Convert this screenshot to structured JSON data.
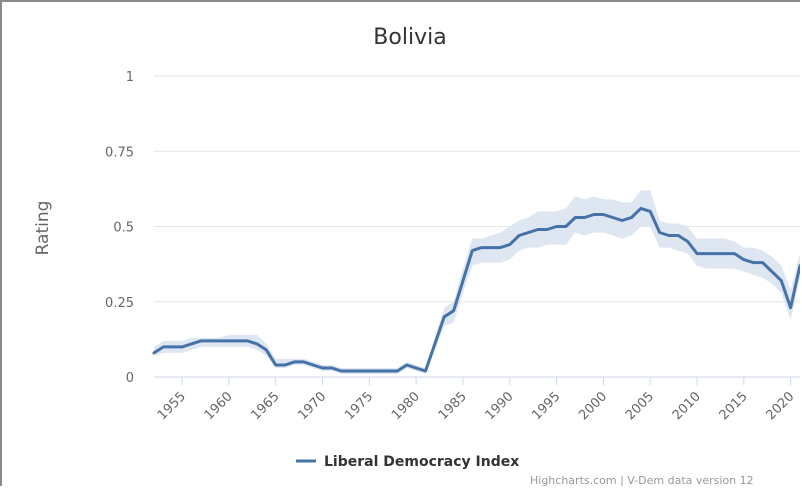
{
  "chart_data": {
    "type": "line",
    "title": "Bolivia",
    "ylabel": "Rating",
    "xlabel": "",
    "ylim": [
      0,
      1
    ],
    "xlim": [
      1952,
      2021
    ],
    "y_ticks": [
      {
        "value": 0,
        "label": "0"
      },
      {
        "value": 0.25,
        "label": "0.25"
      },
      {
        "value": 0.5,
        "label": "0.5"
      },
      {
        "value": 0.75,
        "label": "0.75"
      },
      {
        "value": 1,
        "label": "1"
      }
    ],
    "x_ticks": [
      {
        "value": 1955,
        "label": "1955"
      },
      {
        "value": 1960,
        "label": "1960"
      },
      {
        "value": 1965,
        "label": "1965"
      },
      {
        "value": 1970,
        "label": "1970"
      },
      {
        "value": 1975,
        "label": "1975"
      },
      {
        "value": 1980,
        "label": "1980"
      },
      {
        "value": 1985,
        "label": "1985"
      },
      {
        "value": 1990,
        "label": "1990"
      },
      {
        "value": 1995,
        "label": "1995"
      },
      {
        "value": 2000,
        "label": "2000"
      },
      {
        "value": 2005,
        "label": "2005"
      },
      {
        "value": 2010,
        "label": "2010"
      },
      {
        "value": 2015,
        "label": "2015"
      },
      {
        "value": 2020,
        "label": "2020"
      }
    ],
    "grid": true,
    "legend_position": "bottom-center",
    "credits": "Highcharts.com | V-Dem data version 12",
    "series": [
      {
        "name": "Liberal Democracy Index",
        "color": "#4572a7",
        "band_color": "#dde6f1",
        "x": [
          1952,
          1953,
          1954,
          1955,
          1956,
          1957,
          1958,
          1959,
          1960,
          1961,
          1962,
          1963,
          1964,
          1965,
          1966,
          1967,
          1968,
          1969,
          1970,
          1971,
          1972,
          1973,
          1974,
          1975,
          1976,
          1977,
          1978,
          1979,
          1980,
          1981,
          1982,
          1983,
          1984,
          1985,
          1986,
          1987,
          1988,
          1989,
          1990,
          1991,
          1992,
          1993,
          1994,
          1995,
          1996,
          1997,
          1998,
          1999,
          2000,
          2001,
          2002,
          2003,
          2004,
          2005,
          2006,
          2007,
          2008,
          2009,
          2010,
          2011,
          2012,
          2013,
          2014,
          2015,
          2016,
          2017,
          2018,
          2019,
          2020,
          2021
        ],
        "values": [
          0.08,
          0.1,
          0.1,
          0.1,
          0.11,
          0.12,
          0.12,
          0.12,
          0.12,
          0.12,
          0.12,
          0.11,
          0.09,
          0.04,
          0.04,
          0.05,
          0.05,
          0.04,
          0.03,
          0.03,
          0.02,
          0.02,
          0.02,
          0.02,
          0.02,
          0.02,
          0.02,
          0.04,
          0.03,
          0.02,
          0.11,
          0.2,
          0.22,
          0.32,
          0.42,
          0.43,
          0.43,
          0.43,
          0.44,
          0.47,
          0.48,
          0.49,
          0.49,
          0.5,
          0.5,
          0.53,
          0.53,
          0.54,
          0.54,
          0.53,
          0.52,
          0.53,
          0.56,
          0.55,
          0.48,
          0.47,
          0.47,
          0.45,
          0.41,
          0.41,
          0.41,
          0.41,
          0.41,
          0.39,
          0.38,
          0.38,
          0.35,
          0.32,
          0.23,
          0.37
        ],
        "upper": [
          0.1,
          0.12,
          0.12,
          0.12,
          0.13,
          0.13,
          0.13,
          0.13,
          0.14,
          0.14,
          0.14,
          0.14,
          0.11,
          0.06,
          0.06,
          0.06,
          0.06,
          0.05,
          0.04,
          0.04,
          0.03,
          0.03,
          0.03,
          0.03,
          0.03,
          0.03,
          0.03,
          0.05,
          0.04,
          0.03,
          0.13,
          0.23,
          0.25,
          0.36,
          0.46,
          0.46,
          0.47,
          0.48,
          0.5,
          0.52,
          0.53,
          0.55,
          0.55,
          0.55,
          0.56,
          0.6,
          0.59,
          0.6,
          0.59,
          0.59,
          0.58,
          0.58,
          0.62,
          0.62,
          0.52,
          0.51,
          0.51,
          0.5,
          0.46,
          0.46,
          0.46,
          0.46,
          0.45,
          0.43,
          0.43,
          0.42,
          0.4,
          0.37,
          0.29,
          0.41
        ],
        "lower": [
          0.07,
          0.08,
          0.08,
          0.08,
          0.09,
          0.1,
          0.1,
          0.1,
          0.1,
          0.1,
          0.1,
          0.09,
          0.07,
          0.03,
          0.03,
          0.04,
          0.04,
          0.03,
          0.02,
          0.02,
          0.01,
          0.01,
          0.01,
          0.01,
          0.01,
          0.01,
          0.01,
          0.03,
          0.02,
          0.01,
          0.09,
          0.17,
          0.18,
          0.28,
          0.37,
          0.38,
          0.38,
          0.38,
          0.39,
          0.42,
          0.43,
          0.43,
          0.44,
          0.44,
          0.44,
          0.48,
          0.47,
          0.48,
          0.48,
          0.47,
          0.46,
          0.47,
          0.5,
          0.5,
          0.43,
          0.43,
          0.42,
          0.41,
          0.37,
          0.36,
          0.36,
          0.36,
          0.36,
          0.35,
          0.34,
          0.33,
          0.31,
          0.28,
          0.19,
          0.33
        ]
      }
    ]
  }
}
